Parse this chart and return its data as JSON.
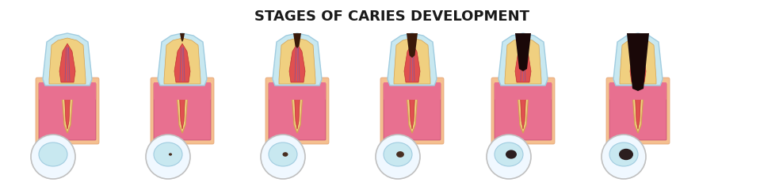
{
  "title": "STAGES OF CARIES DEVELOPMENT",
  "title_fontsize": 13,
  "title_font": "DejaVu Sans",
  "title_weight": "bold",
  "background_color": "#ffffff",
  "num_stages": 6,
  "colors": {
    "enamel": "#c8e8f0",
    "enamel_outline": "#a0cce0",
    "dentin": "#f0d080",
    "dentin_outline": "#d4a050",
    "pulp": "#e05050",
    "pulp_outline": "#c03030",
    "gum": "#e87090",
    "gum_dark": "#c05070",
    "bone": "#f5c090",
    "bone_outline": "#e0a070",
    "root_canal": "#c04040",
    "nerve": "#8060a0",
    "caries_light": "#3a1a0a",
    "caries_dark": "#1a0808",
    "circle_fill": "#f0f8ff",
    "circle_outline": "#c0c0c0"
  }
}
